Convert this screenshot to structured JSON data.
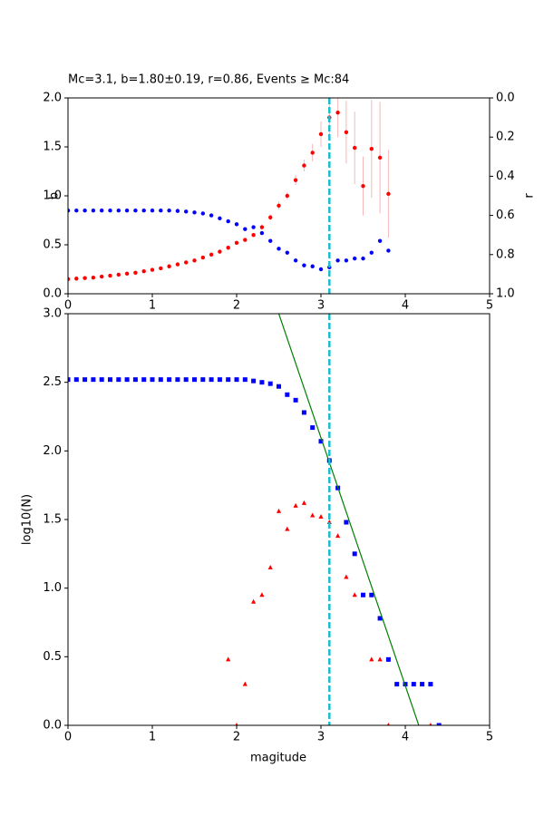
{
  "chart_data": [
    {
      "type": "scatter",
      "title": "Mc=3.1, b=1.80±0.19, r=0.86, Events ≥ Mc:84",
      "ylabel": "b",
      "y2label": "r",
      "xlim": [
        0,
        5
      ],
      "xticks": [
        0,
        1,
        2,
        3,
        4,
        5
      ],
      "ylim": [
        0,
        2
      ],
      "yticks": [
        {
          "value": 0,
          "label": "0.0"
        },
        0.5,
        {
          "value": 1,
          "label": "1.0"
        },
        1.5,
        {
          "value": 2,
          "label": "2.0"
        }
      ],
      "y2lim": [
        1,
        0
      ],
      "y2ticks": [
        {
          "value": 0,
          "label": "0.0"
        },
        0.2,
        0.4,
        0.6,
        0.8,
        {
          "value": 1,
          "label": "1.0"
        }
      ],
      "mc": 3.1,
      "mc_color": "#17becf",
      "x": [
        0,
        0.1,
        0.2,
        0.3,
        0.4,
        0.5,
        0.6,
        0.7,
        0.8,
        0.9,
        1.0,
        1.1,
        1.2,
        1.3,
        1.4,
        1.5,
        1.6,
        1.7,
        1.8,
        1.9,
        2.0,
        2.1,
        2.2,
        2.3,
        2.4,
        2.5,
        2.6,
        2.7,
        2.8,
        2.9,
        3.0,
        3.1,
        3.2,
        3.3,
        3.4,
        3.5,
        3.6,
        3.7,
        3.8
      ],
      "series": [
        {
          "color": "#ff0000",
          "marker": "circle",
          "values": [
            0.15,
            0.155,
            0.16,
            0.165,
            0.175,
            0.185,
            0.195,
            0.205,
            0.215,
            0.23,
            0.245,
            0.26,
            0.28,
            0.3,
            0.32,
            0.34,
            0.37,
            0.4,
            0.43,
            0.47,
            0.52,
            0.55,
            0.6,
            0.68,
            0.78,
            0.9,
            1.0,
            1.16,
            1.31,
            1.44,
            1.63,
            1.8,
            1.85,
            1.65,
            1.49,
            1.1,
            1.48,
            1.39,
            1.02
          ],
          "errors": [
            0.01,
            0.01,
            0.01,
            0.01,
            0.01,
            0.01,
            0.01,
            0.01,
            0.01,
            0.01,
            0.01,
            0.01,
            0.01,
            0.01,
            0.01,
            0.01,
            0.01,
            0.01,
            0.01,
            0.01,
            0.01,
            0.02,
            0.02,
            0.03,
            0.03,
            0.04,
            0.04,
            0.05,
            0.06,
            0.09,
            0.13,
            0.19,
            0.25,
            0.32,
            0.37,
            0.3,
            0.5,
            0.57,
            0.45
          ],
          "error_color": "#f4b8b8"
        },
        {
          "color": "#0000ff",
          "marker": "circle",
          "axis": "y2",
          "values": [
            0.575,
            0.575,
            0.575,
            0.575,
            0.575,
            0.575,
            0.575,
            0.575,
            0.575,
            0.575,
            0.575,
            0.575,
            0.575,
            0.577,
            0.58,
            0.585,
            0.59,
            0.6,
            0.615,
            0.63,
            0.645,
            0.67,
            0.66,
            0.69,
            0.73,
            0.77,
            0.79,
            0.83,
            0.855,
            0.86,
            0.875,
            0.865,
            0.83,
            0.83,
            0.82,
            0.82,
            0.79,
            0.73,
            0.78
          ]
        }
      ]
    },
    {
      "type": "scatter",
      "xlabel": "magitude",
      "ylabel": "log10(N)",
      "xlim": [
        0,
        5
      ],
      "xticks": [
        0,
        1,
        2,
        3,
        4,
        5
      ],
      "ylim": [
        0,
        3
      ],
      "yticks": [
        {
          "value": 0,
          "label": "0.0"
        },
        0.5,
        {
          "value": 1,
          "label": "1.0"
        },
        1.5,
        {
          "value": 2,
          "label": "2.0"
        },
        2.5,
        {
          "value": 3,
          "label": "3.0"
        }
      ],
      "mc": 3.1,
      "mc_color": "#17becf",
      "series": [
        {
          "color": "#0000ff",
          "marker": "square",
          "x": [
            0,
            0.1,
            0.2,
            0.3,
            0.4,
            0.5,
            0.6,
            0.7,
            0.8,
            0.9,
            1.0,
            1.1,
            1.2,
            1.3,
            1.4,
            1.5,
            1.6,
            1.7,
            1.8,
            1.9,
            2.0,
            2.1,
            2.2,
            2.3,
            2.4,
            2.5,
            2.6,
            2.7,
            2.8,
            2.9,
            3.0,
            3.1,
            3.2,
            3.3,
            3.4,
            3.5,
            3.6,
            3.7,
            3.8,
            3.9,
            4.0,
            4.1,
            4.2,
            4.3,
            4.4
          ],
          "values": [
            2.52,
            2.52,
            2.52,
            2.52,
            2.52,
            2.52,
            2.52,
            2.52,
            2.52,
            2.52,
            2.52,
            2.52,
            2.52,
            2.52,
            2.52,
            2.52,
            2.52,
            2.52,
            2.52,
            2.52,
            2.52,
            2.52,
            2.51,
            2.5,
            2.49,
            2.47,
            2.41,
            2.37,
            2.28,
            2.17,
            2.07,
            1.93,
            1.73,
            1.48,
            1.25,
            0.95,
            0.95,
            0.78,
            0.48,
            0.3,
            0.3,
            0.3,
            0.3,
            0.3,
            0
          ]
        },
        {
          "color": "#ff0000",
          "marker": "triangle",
          "x": [
            1.9,
            2.0,
            2.1,
            2.2,
            2.3,
            2.4,
            2.5,
            2.6,
            2.7,
            2.8,
            2.9,
            3.0,
            3.1,
            3.2,
            3.3,
            3.4,
            3.6,
            3.7,
            3.8,
            4.3
          ],
          "values": [
            0.48,
            0,
            0.3,
            0.9,
            0.95,
            1.15,
            1.56,
            1.43,
            1.6,
            1.62,
            1.53,
            1.52,
            1.48,
            1.38,
            1.08,
            0.95,
            0.48,
            0.48,
            0,
            0
          ]
        },
        {
          "color": "#008000",
          "marker": "line",
          "x": [
            2.5,
            4.16
          ],
          "values": [
            3.0,
            0
          ]
        }
      ]
    }
  ]
}
